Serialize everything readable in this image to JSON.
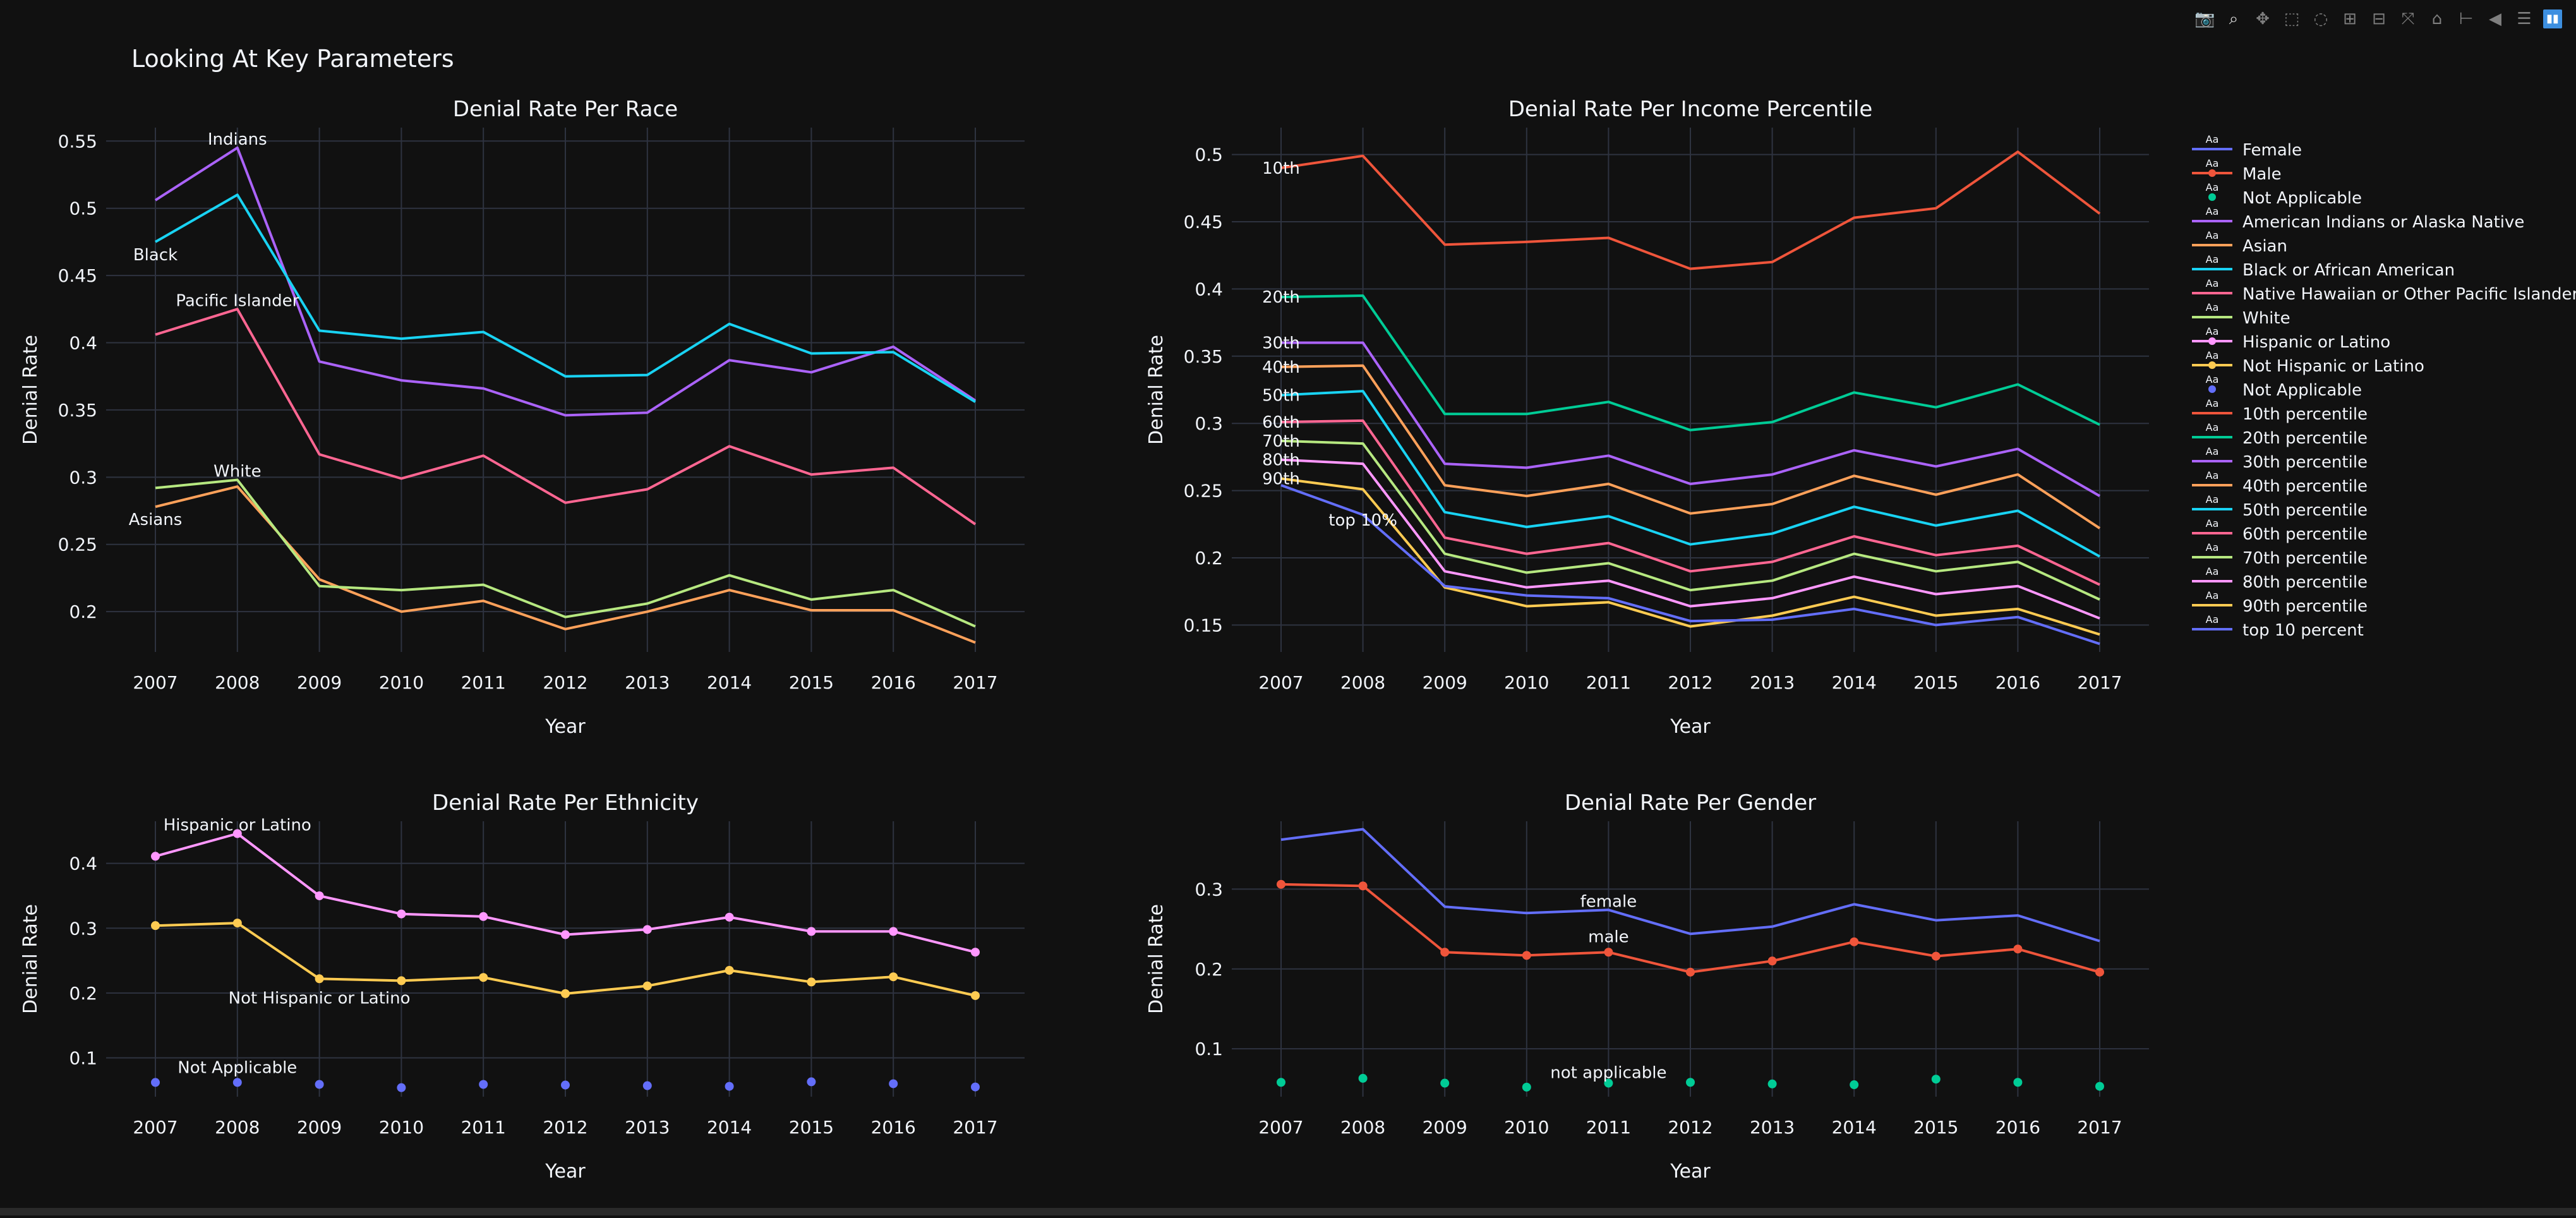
{
  "title": "Looking At Key Parameters",
  "modebar": {
    "buttons": [
      {
        "name": "camera-icon",
        "glyph": "📷"
      },
      {
        "name": "zoom-icon",
        "glyph": "⌕",
        "active": true
      },
      {
        "name": "pan-icon",
        "glyph": "✥"
      },
      {
        "name": "box-select-icon",
        "glyph": "⬚"
      },
      {
        "name": "lasso-select-icon",
        "glyph": "◌"
      },
      {
        "name": "zoom-in-icon",
        "glyph": "⊞"
      },
      {
        "name": "zoom-out-icon",
        "glyph": "⊟"
      },
      {
        "name": "autoscale-icon",
        "glyph": "⤧"
      },
      {
        "name": "reset-axes-icon",
        "glyph": "⌂"
      },
      {
        "name": "spike-lines-icon",
        "glyph": "⊢"
      },
      {
        "name": "hover-closest-icon",
        "glyph": "◀"
      },
      {
        "name": "hover-compare-icon",
        "glyph": "☰"
      }
    ],
    "logo": "plotly-logo-icon"
  },
  "chart_data": [
    {
      "type": "line",
      "title": "Denial Rate Per Race",
      "xlabel": "Year",
      "ylabel": "Denial Rate",
      "x": [
        2007,
        2008,
        2009,
        2010,
        2011,
        2012,
        2013,
        2014,
        2015,
        2016,
        2017
      ],
      "ylim": [
        0.17,
        0.56
      ],
      "yticks": [
        0.2,
        0.25,
        0.3,
        0.35,
        0.4,
        0.45,
        0.5,
        0.55
      ],
      "ytick_labels": [
        "0.2",
        "0.25",
        "0.3",
        "0.35",
        "0.4",
        "0.45",
        "0.5",
        "0.55"
      ],
      "grid": true,
      "series": [
        {
          "name": "American Indians or Alaska Native",
          "color": "#ab63fa",
          "values": [
            0.506,
            0.545,
            0.386,
            0.372,
            0.366,
            0.346,
            0.348,
            0.387,
            0.378,
            0.397,
            0.357
          ]
        },
        {
          "name": "Asian",
          "color": "#ffa15a",
          "values": [
            0.278,
            0.293,
            0.224,
            0.2,
            0.208,
            0.187,
            0.2,
            0.216,
            0.201,
            0.201,
            0.177
          ]
        },
        {
          "name": "Black or African American",
          "color": "#19d3f3",
          "values": [
            0.475,
            0.51,
            0.409,
            0.403,
            0.408,
            0.375,
            0.376,
            0.414,
            0.392,
            0.393,
            0.356
          ]
        },
        {
          "name": "Native Hawaiian or Other Pacific Islander",
          "color": "#ff6692",
          "values": [
            0.406,
            0.425,
            0.317,
            0.299,
            0.316,
            0.281,
            0.291,
            0.323,
            0.302,
            0.307,
            0.265
          ]
        },
        {
          "name": "White",
          "color": "#b6e880",
          "values": [
            0.292,
            0.298,
            0.219,
            0.216,
            0.22,
            0.196,
            0.206,
            0.227,
            0.209,
            0.216,
            0.189
          ]
        }
      ],
      "annotations": [
        {
          "text": "Indians",
          "x": 2008,
          "y": 0.545,
          "ax": 0,
          "ay": -14
        },
        {
          "text": "Black",
          "x": 2007,
          "y": 0.475,
          "ax": 0,
          "ay": 20
        },
        {
          "text": "Pacific Islander",
          "x": 2008,
          "y": 0.425,
          "ax": 0,
          "ay": -14
        },
        {
          "text": "White",
          "x": 2008,
          "y": 0.298,
          "ax": 0,
          "ay": -14
        },
        {
          "text": "Asians",
          "x": 2007,
          "y": 0.278,
          "ax": 0,
          "ay": 20
        }
      ]
    },
    {
      "type": "line",
      "title": "Denial Rate Per Income Percentile",
      "xlabel": "Year",
      "ylabel": "Denial Rate",
      "x": [
        2007,
        2008,
        2009,
        2010,
        2011,
        2012,
        2013,
        2014,
        2015,
        2016,
        2017
      ],
      "ylim": [
        0.13,
        0.52
      ],
      "yticks": [
        0.15,
        0.2,
        0.25,
        0.3,
        0.35,
        0.4,
        0.45,
        0.5
      ],
      "ytick_labels": [
        "0.15",
        "0.2",
        "0.25",
        "0.3",
        "0.35",
        "0.4",
        "0.45",
        "0.5"
      ],
      "grid": true,
      "series": [
        {
          "name": "10th percentile",
          "color": "#ef553b",
          "values": [
            0.49,
            0.499,
            0.433,
            0.435,
            0.438,
            0.415,
            0.42,
            0.453,
            0.46,
            0.502,
            0.456
          ]
        },
        {
          "name": "20th percentile",
          "color": "#00cc96",
          "values": [
            0.394,
            0.395,
            0.307,
            0.307,
            0.316,
            0.295,
            0.301,
            0.323,
            0.312,
            0.329,
            0.299
          ]
        },
        {
          "name": "30th percentile",
          "color": "#ab63fa",
          "values": [
            0.36,
            0.36,
            0.27,
            0.267,
            0.276,
            0.255,
            0.262,
            0.28,
            0.268,
            0.281,
            0.246
          ]
        },
        {
          "name": "40th percentile",
          "color": "#ffa15a",
          "values": [
            0.342,
            0.343,
            0.254,
            0.246,
            0.255,
            0.233,
            0.24,
            0.261,
            0.247,
            0.262,
            0.222
          ]
        },
        {
          "name": "50th percentile",
          "color": "#19d3f3",
          "values": [
            0.321,
            0.324,
            0.234,
            0.223,
            0.231,
            0.21,
            0.218,
            0.238,
            0.224,
            0.235,
            0.201
          ]
        },
        {
          "name": "60th percentile",
          "color": "#ff6692",
          "values": [
            0.301,
            0.302,
            0.215,
            0.203,
            0.211,
            0.19,
            0.197,
            0.216,
            0.202,
            0.209,
            0.18
          ]
        },
        {
          "name": "70th percentile",
          "color": "#b6e880",
          "values": [
            0.287,
            0.285,
            0.203,
            0.189,
            0.196,
            0.176,
            0.183,
            0.203,
            0.19,
            0.197,
            0.169
          ]
        },
        {
          "name": "80th percentile",
          "color": "#ff97ff",
          "values": [
            0.273,
            0.27,
            0.19,
            0.178,
            0.183,
            0.164,
            0.17,
            0.186,
            0.173,
            0.179,
            0.155
          ]
        },
        {
          "name": "90th percentile",
          "color": "#fecb52",
          "values": [
            0.259,
            0.251,
            0.178,
            0.164,
            0.167,
            0.149,
            0.157,
            0.171,
            0.157,
            0.162,
            0.143
          ]
        },
        {
          "name": "top 10 percent",
          "color": "#636efa",
          "values": [
            0.254,
            0.232,
            0.179,
            0.172,
            0.17,
            0.153,
            0.154,
            0.162,
            0.15,
            0.156,
            0.136
          ]
        }
      ],
      "annotations": [
        {
          "text": "10th",
          "x": 2007,
          "y": 0.49,
          "ax": 0,
          "ay": 0
        },
        {
          "text": "20th",
          "x": 2007,
          "y": 0.394,
          "ax": 0,
          "ay": 0
        },
        {
          "text": "30th",
          "x": 2007,
          "y": 0.36,
          "ax": 0,
          "ay": 0
        },
        {
          "text": "40th",
          "x": 2007,
          "y": 0.342,
          "ax": 0,
          "ay": 0
        },
        {
          "text": "50th",
          "x": 2007,
          "y": 0.321,
          "ax": 0,
          "ay": 0
        },
        {
          "text": "60th",
          "x": 2007,
          "y": 0.301,
          "ax": 0,
          "ay": 0
        },
        {
          "text": "70th",
          "x": 2007,
          "y": 0.287,
          "ax": 0,
          "ay": 0
        },
        {
          "text": "80th",
          "x": 2007,
          "y": 0.273,
          "ax": 0,
          "ay": 0
        },
        {
          "text": "90th",
          "x": 2007,
          "y": 0.259,
          "ax": 0,
          "ay": 0
        },
        {
          "text": "top 10%",
          "x": 2008,
          "y": 0.232,
          "ax": 0,
          "ay": 8
        }
      ]
    },
    {
      "type": "line",
      "title": "Denial Rate Per Ethnicity",
      "xlabel": "Year",
      "ylabel": "Denial Rate",
      "x": [
        2007,
        2008,
        2009,
        2010,
        2011,
        2012,
        2013,
        2014,
        2015,
        2016,
        2017
      ],
      "ylim": [
        0.04,
        0.465
      ],
      "yticks": [
        0.1,
        0.2,
        0.3,
        0.4
      ],
      "ytick_labels": [
        "0.1",
        "0.2",
        "0.3",
        "0.4"
      ],
      "grid": true,
      "series": [
        {
          "name": "Hispanic or Latino",
          "color": "#ff97ff",
          "mode": "lines+markers",
          "values": [
            0.411,
            0.446,
            0.35,
            0.322,
            0.318,
            0.29,
            0.298,
            0.317,
            0.295,
            0.295,
            0.263
          ]
        },
        {
          "name": "Not Hispanic or Latino",
          "color": "#fecb52",
          "mode": "lines+markers",
          "values": [
            0.304,
            0.308,
            0.222,
            0.219,
            0.224,
            0.199,
            0.211,
            0.235,
            0.217,
            0.225,
            0.196
          ]
        },
        {
          "name": "Not Applicable",
          "color": "#636efa",
          "mode": "markers",
          "values": [
            0.062,
            0.062,
            0.059,
            0.054,
            0.059,
            0.058,
            0.057,
            0.056,
            0.063,
            0.06,
            0.055
          ]
        }
      ],
      "annotations": [
        {
          "text": "Hispanic or Latino",
          "x": 2008,
          "y": 0.446,
          "ax": 0,
          "ay": -14
        },
        {
          "text": "Not Hispanic or Latino",
          "x": 2009,
          "y": 0.222,
          "ax": 0,
          "ay": 30
        },
        {
          "text": "Not Applicable",
          "x": 2008,
          "y": 0.062,
          "ax": 0,
          "ay": -24
        }
      ]
    },
    {
      "type": "line",
      "title": "Denial Rate Per Gender",
      "xlabel": "Year",
      "ylabel": "Denial Rate",
      "x": [
        2007,
        2008,
        2009,
        2010,
        2011,
        2012,
        2013,
        2014,
        2015,
        2016,
        2017
      ],
      "ylim": [
        0.04,
        0.385
      ],
      "yticks": [
        0.1,
        0.2,
        0.3
      ],
      "ytick_labels": [
        "0.1",
        "0.2",
        "0.3"
      ],
      "grid": true,
      "series": [
        {
          "name": "Female",
          "color": "#636efa",
          "mode": "lines",
          "values": [
            0.362,
            0.375,
            0.278,
            0.27,
            0.274,
            0.244,
            0.253,
            0.281,
            0.261,
            0.267,
            0.235
          ]
        },
        {
          "name": "Male",
          "color": "#ef553b",
          "mode": "lines+markers",
          "values": [
            0.306,
            0.304,
            0.221,
            0.217,
            0.221,
            0.196,
            0.21,
            0.234,
            0.216,
            0.225,
            0.196
          ]
        },
        {
          "name": "Not Applicable",
          "color": "#00cc96",
          "mode": "markers",
          "values": [
            0.058,
            0.063,
            0.057,
            0.052,
            0.057,
            0.058,
            0.056,
            0.055,
            0.062,
            0.058,
            0.053
          ]
        }
      ],
      "annotations": [
        {
          "text": "female",
          "x": 2011,
          "y": 0.274,
          "ax": 0,
          "ay": -14
        },
        {
          "text": "male",
          "x": 2011,
          "y": 0.221,
          "ax": 0,
          "ay": -25
        },
        {
          "text": "not applicable",
          "x": 2011,
          "y": 0.057,
          "ax": 0,
          "ay": -17
        }
      ]
    }
  ],
  "legend": {
    "placement": "right",
    "items": [
      {
        "label": "Female",
        "color": "#636efa",
        "symbol": "line"
      },
      {
        "label": "Male",
        "color": "#ef553b",
        "symbol": "line+marker"
      },
      {
        "label": "Not Applicable",
        "color": "#00cc96",
        "symbol": "marker"
      },
      {
        "label": "American Indians or Alaska Native",
        "color": "#ab63fa",
        "symbol": "line"
      },
      {
        "label": "Asian",
        "color": "#ffa15a",
        "symbol": "line"
      },
      {
        "label": "Black or African American",
        "color": "#19d3f3",
        "symbol": "line"
      },
      {
        "label": "Native Hawaiian or Other Pacific Islander",
        "color": "#ff6692",
        "symbol": "line"
      },
      {
        "label": "White",
        "color": "#b6e880",
        "symbol": "line"
      },
      {
        "label": "Hispanic or Latino",
        "color": "#ff97ff",
        "symbol": "line+marker"
      },
      {
        "label": "Not Hispanic or Latino",
        "color": "#fecb52",
        "symbol": "line+marker"
      },
      {
        "label": "Not Applicable",
        "color": "#636efa",
        "symbol": "marker"
      },
      {
        "label": "10th percentile",
        "color": "#ef553b",
        "symbol": "line"
      },
      {
        "label": "20th percentile",
        "color": "#00cc96",
        "symbol": "line"
      },
      {
        "label": "30th percentile",
        "color": "#ab63fa",
        "symbol": "line"
      },
      {
        "label": "40th percentile",
        "color": "#ffa15a",
        "symbol": "line"
      },
      {
        "label": "50th percentile",
        "color": "#19d3f3",
        "symbol": "line"
      },
      {
        "label": "60th percentile",
        "color": "#ff6692",
        "symbol": "line"
      },
      {
        "label": "70th percentile",
        "color": "#b6e880",
        "symbol": "line"
      },
      {
        "label": "80th percentile",
        "color": "#ff97ff",
        "symbol": "line"
      },
      {
        "label": "90th percentile",
        "color": "#fecb52",
        "symbol": "line"
      },
      {
        "label": "top 10 percent",
        "color": "#636efa",
        "symbol": "line"
      }
    ]
  }
}
